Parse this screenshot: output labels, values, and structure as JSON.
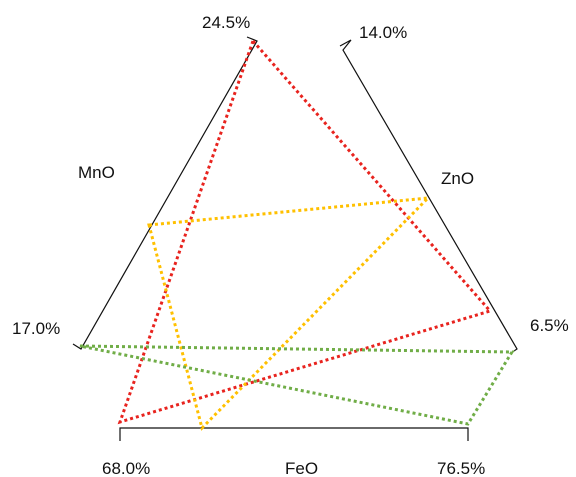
{
  "axes": {
    "mno": {
      "name": "MnO",
      "min_label": "17.0%",
      "max_label": "24.5%"
    },
    "zno": {
      "name": "ZnO",
      "top_label": "14.0%",
      "bottom_label": "6.5%"
    },
    "feo": {
      "name": "FeO",
      "min_label": "68.0%",
      "max_label": "76.5%"
    }
  },
  "triangles": [
    {
      "name": "red",
      "color": "#e8231e"
    },
    {
      "name": "yellow",
      "color": "#ffc000"
    },
    {
      "name": "green",
      "color": "#70ad47"
    }
  ],
  "colors": {
    "axis": "#111111"
  }
}
